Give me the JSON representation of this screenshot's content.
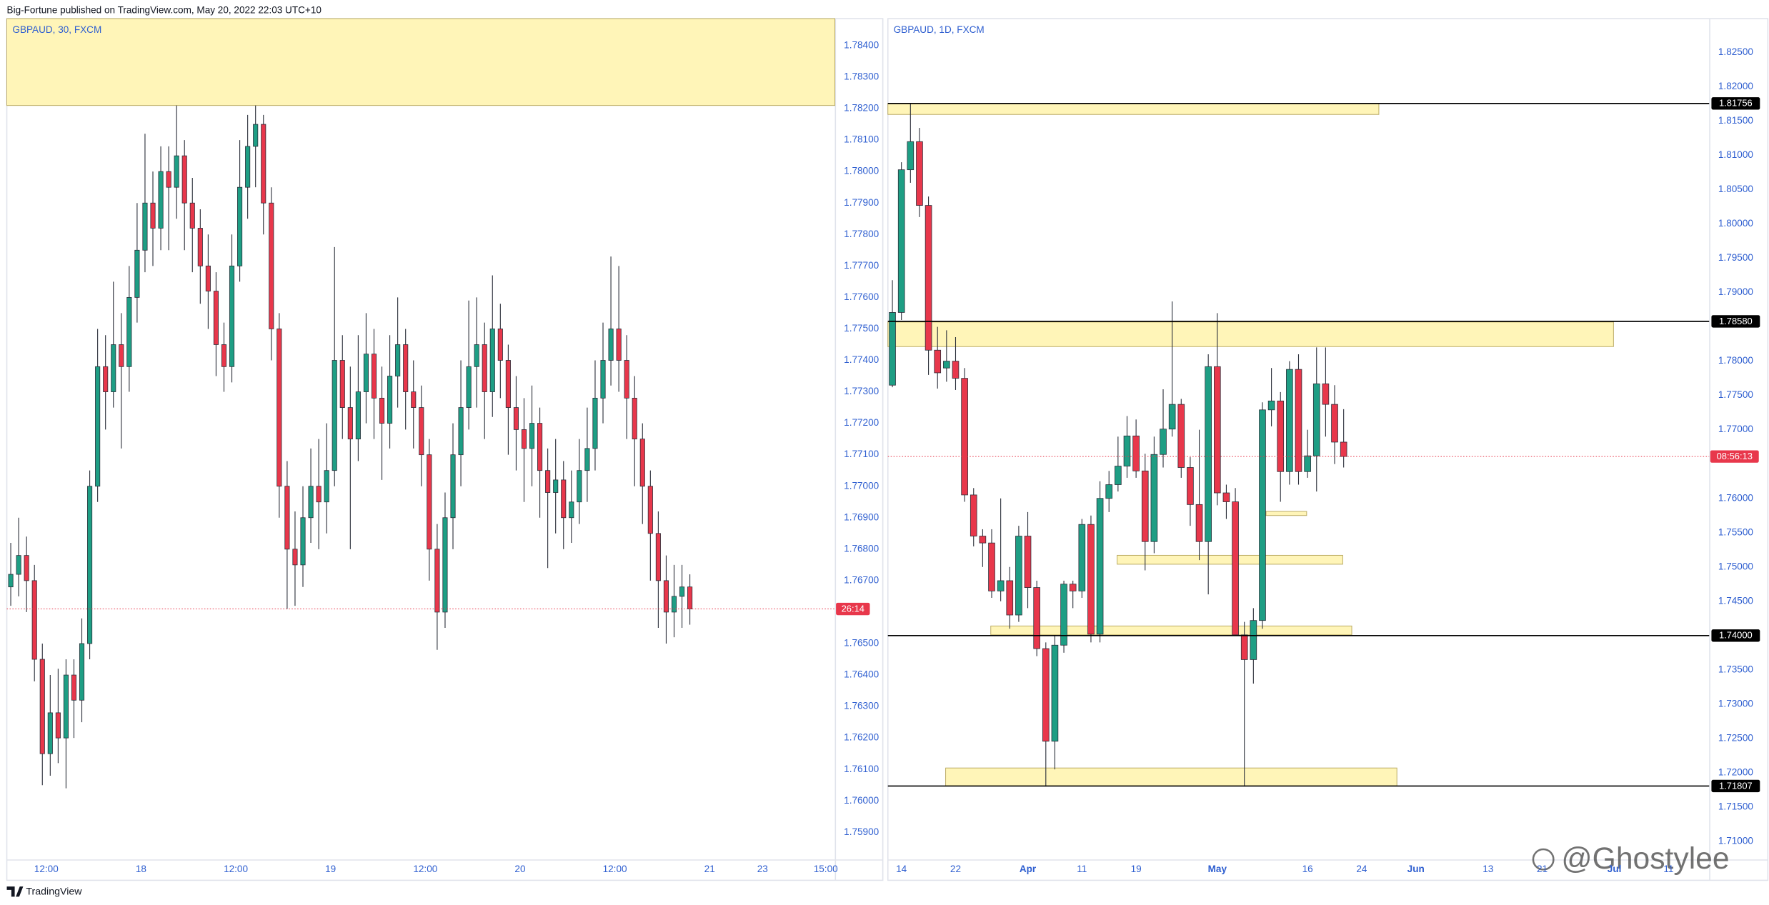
{
  "header": "Big-Fortune published on TradingView.com, May 20, 2022 22:03 UTC+10",
  "footer": "TradingView",
  "watermark": "@Ghostylee",
  "chart_data": [
    {
      "type": "candlestick",
      "title": "GBPAUD, 30, FXCM",
      "up_color": "#1e9e84",
      "down_color": "#e8374b",
      "zone_color": "#fff5b8",
      "grid": false,
      "x": [
        0.5,
        1.5,
        2.5,
        3.5,
        4.5,
        5.5,
        6.5,
        7.5,
        8.5,
        9.5,
        10.5,
        11.5,
        12.5,
        13.5,
        14.5,
        15.5,
        16.5,
        17.5,
        18.5,
        19.5,
        20.5,
        21.5,
        22.5,
        23.5,
        24.5,
        25.5,
        26.5,
        27.5,
        28.5,
        29.5,
        30.5,
        31.5,
        32.5,
        33.5,
        34.5,
        35.5,
        36.5,
        37.5,
        38.5,
        39.5,
        40.5,
        41.5,
        42.5,
        43.5,
        44.5,
        45.5,
        46.5,
        47.5,
        48.5,
        49.5,
        50.5,
        51.5,
        52.5,
        53.5,
        54.5,
        55.5,
        56.5,
        57.5,
        58.5,
        59.5,
        60.5,
        61.5,
        62.5,
        63.5,
        64.5,
        65.5,
        66.5,
        67.5,
        68.5,
        69.5,
        70.5,
        71.5,
        72.5,
        73.5,
        74.5,
        75.5,
        76.5,
        77.5,
        78.5,
        79.5,
        80.5,
        81.5,
        82.5,
        83.5,
        84.5,
        85.5,
        86.5
      ],
      "open": [
        1.7668,
        1.7672,
        1.7678,
        1.767,
        1.7645,
        1.7615,
        1.7628,
        1.762,
        1.764,
        1.7632,
        1.765,
        1.77,
        1.7738,
        1.773,
        1.7745,
        1.7738,
        1.776,
        1.7775,
        1.779,
        1.7782,
        1.78,
        1.7795,
        1.7805,
        1.779,
        1.7782,
        1.777,
        1.7762,
        1.7745,
        1.7738,
        1.777,
        1.7795,
        1.7808,
        1.7815,
        1.779,
        1.775,
        1.77,
        1.768,
        1.7675,
        1.769,
        1.77,
        1.7695,
        1.7705,
        1.774,
        1.7725,
        1.7715,
        1.773,
        1.7742,
        1.7728,
        1.772,
        1.7735,
        1.7745,
        1.773,
        1.7725,
        1.771,
        1.768,
        1.766,
        1.769,
        1.771,
        1.7725,
        1.7738,
        1.7745,
        1.773,
        1.775,
        1.774,
        1.7725,
        1.7718,
        1.7712,
        1.772,
        1.7705,
        1.7698,
        1.7702,
        1.769,
        1.7695,
        1.7705,
        1.7712,
        1.7728,
        1.774,
        1.775,
        1.774,
        1.7728,
        1.7715,
        1.77,
        1.7685,
        1.767,
        1.766,
        1.7665,
        1.7668
      ],
      "high": [
        1.7682,
        1.769,
        1.7684,
        1.7675,
        1.765,
        1.764,
        1.7642,
        1.7645,
        1.7645,
        1.7658,
        1.7705,
        1.775,
        1.7748,
        1.7765,
        1.7755,
        1.777,
        1.779,
        1.7812,
        1.78,
        1.7808,
        1.7808,
        1.7821,
        1.781,
        1.7798,
        1.7788,
        1.778,
        1.7768,
        1.7752,
        1.778,
        1.781,
        1.7818,
        1.7821,
        1.7818,
        1.7795,
        1.7755,
        1.7708,
        1.7692,
        1.77,
        1.7712,
        1.7715,
        1.772,
        1.7776,
        1.7748,
        1.7738,
        1.7748,
        1.7755,
        1.775,
        1.7738,
        1.7748,
        1.776,
        1.775,
        1.774,
        1.7732,
        1.7715,
        1.7688,
        1.7698,
        1.772,
        1.774,
        1.7759,
        1.776,
        1.7752,
        1.7767,
        1.7758,
        1.7745,
        1.7735,
        1.7728,
        1.7732,
        1.7725,
        1.7712,
        1.7715,
        1.7708,
        1.7705,
        1.7715,
        1.7725,
        1.774,
        1.7752,
        1.7773,
        1.777,
        1.7748,
        1.7735,
        1.772,
        1.7705,
        1.7692,
        1.7678,
        1.7675,
        1.7675,
        1.7672
      ],
      "low": [
        1.7662,
        1.7665,
        1.766,
        1.7638,
        1.7605,
        1.7608,
        1.7612,
        1.7604,
        1.762,
        1.7625,
        1.7645,
        1.7695,
        1.7718,
        1.7725,
        1.7712,
        1.773,
        1.7752,
        1.7768,
        1.777,
        1.7775,
        1.7775,
        1.7785,
        1.7775,
        1.7768,
        1.7758,
        1.775,
        1.7735,
        1.773,
        1.7733,
        1.7765,
        1.7785,
        1.7795,
        1.778,
        1.774,
        1.769,
        1.7661,
        1.7662,
        1.7668,
        1.7682,
        1.768,
        1.7685,
        1.77,
        1.7715,
        1.768,
        1.7708,
        1.772,
        1.7715,
        1.7702,
        1.7712,
        1.7725,
        1.7718,
        1.7712,
        1.77,
        1.767,
        1.7648,
        1.7655,
        1.768,
        1.77,
        1.7718,
        1.7725,
        1.7715,
        1.7722,
        1.7728,
        1.771,
        1.7705,
        1.7695,
        1.77,
        1.769,
        1.7674,
        1.7685,
        1.768,
        1.7682,
        1.7688,
        1.7695,
        1.7705,
        1.772,
        1.7732,
        1.773,
        1.7715,
        1.77,
        1.7688,
        1.767,
        1.7655,
        1.765,
        1.7652,
        1.7655,
        1.7656
      ],
      "close": [
        1.7672,
        1.7678,
        1.767,
        1.7645,
        1.7615,
        1.7628,
        1.762,
        1.764,
        1.7632,
        1.765,
        1.77,
        1.7738,
        1.773,
        1.7745,
        1.7738,
        1.776,
        1.7775,
        1.779,
        1.7782,
        1.78,
        1.7795,
        1.7805,
        1.779,
        1.7782,
        1.777,
        1.7762,
        1.7745,
        1.7738,
        1.777,
        1.7795,
        1.7808,
        1.7815,
        1.779,
        1.775,
        1.77,
        1.768,
        1.7675,
        1.769,
        1.77,
        1.7695,
        1.7705,
        1.774,
        1.7725,
        1.7715,
        1.773,
        1.7742,
        1.7728,
        1.772,
        1.7735,
        1.7745,
        1.773,
        1.7725,
        1.771,
        1.768,
        1.766,
        1.769,
        1.771,
        1.7725,
        1.7738,
        1.7745,
        1.773,
        1.775,
        1.774,
        1.7725,
        1.7718,
        1.7712,
        1.772,
        1.7705,
        1.7698,
        1.7702,
        1.769,
        1.7695,
        1.7705,
        1.7712,
        1.7728,
        1.774,
        1.775,
        1.774,
        1.7728,
        1.7715,
        1.77,
        1.7685,
        1.767,
        1.766,
        1.7665,
        1.7668,
        1.7661
      ],
      "xlim": [
        0,
        104.86
      ],
      "xticks": [
        {
          "value": 5,
          "label": "12:00"
        },
        {
          "value": 17,
          "label": "18"
        },
        {
          "value": 29,
          "label": "12:00"
        },
        {
          "value": 41,
          "label": "19"
        },
        {
          "value": 53,
          "label": "12:00"
        },
        {
          "value": 65,
          "label": "20"
        },
        {
          "value": 77,
          "label": "12:00"
        },
        {
          "value": 89,
          "label": "21"
        },
        {
          "value": 95.7,
          "label": "23"
        },
        {
          "value": 103.7,
          "label": "15:00"
        }
      ],
      "ylim": [
        1.75814,
        1.78486
      ],
      "yticks": [
        {
          "value": 1.784,
          "label": "1.78400"
        },
        {
          "value": 1.783,
          "label": "1.78300"
        },
        {
          "value": 1.782,
          "label": "1.78200"
        },
        {
          "value": 1.781,
          "label": "1.78100"
        },
        {
          "value": 1.78,
          "label": "1.78000"
        },
        {
          "value": 1.779,
          "label": "1.77900"
        },
        {
          "value": 1.778,
          "label": "1.77800"
        },
        {
          "value": 1.777,
          "label": "1.77700"
        },
        {
          "value": 1.776,
          "label": "1.77600"
        },
        {
          "value": 1.775,
          "label": "1.77500"
        },
        {
          "value": 1.774,
          "label": "1.77400"
        },
        {
          "value": 1.773,
          "label": "1.77300"
        },
        {
          "value": 1.772,
          "label": "1.77200"
        },
        {
          "value": 1.771,
          "label": "1.77100"
        },
        {
          "value": 1.77,
          "label": "1.77000"
        },
        {
          "value": 1.769,
          "label": "1.76900"
        },
        {
          "value": 1.768,
          "label": "1.76800"
        },
        {
          "value": 1.767,
          "label": "1.76700"
        },
        {
          "value": 1.765,
          "label": "1.76500"
        },
        {
          "value": 1.764,
          "label": "1.76400"
        },
        {
          "value": 1.763,
          "label": "1.76300"
        },
        {
          "value": 1.762,
          "label": "1.76200"
        },
        {
          "value": 1.761,
          "label": "1.76100"
        },
        {
          "value": 1.76,
          "label": "1.76000"
        },
        {
          "value": 1.759,
          "label": "1.75900"
        }
      ],
      "zones": [
        {
          "x": [
            0,
            104.86
          ],
          "y": [
            1.7821,
            1.78486
          ]
        }
      ],
      "last_price": 1.7661,
      "countdown": "26:14"
    },
    {
      "type": "candlestick",
      "title": "GBPAUD, 1D, FXCM",
      "up_color": "#1e9e84",
      "down_color": "#e8374b",
      "zone_color": "#fff5b8",
      "grid": false,
      "x": [
        0,
        1,
        2,
        3,
        4,
        5,
        6,
        7,
        8,
        9,
        10,
        11,
        12,
        13,
        14,
        15,
        16,
        17,
        18,
        19,
        20,
        21,
        22,
        23,
        24,
        25,
        26,
        27,
        28,
        29,
        30,
        31,
        32,
        33,
        34,
        35,
        36,
        37,
        38,
        39,
        40,
        41,
        42,
        43,
        44,
        45,
        46,
        47,
        48,
        49,
        50
      ],
      "open": [
        1.7765,
        1.7871,
        1.8079,
        1.812,
        1.8027,
        1.7816,
        1.779,
        1.78,
        1.7775,
        1.7605,
        1.7545,
        1.7535,
        1.7465,
        1.748,
        1.743,
        1.7545,
        1.747,
        1.7381,
        1.7246,
        1.7386,
        1.7475,
        1.7465,
        1.7562,
        1.7402,
        1.76,
        1.762,
        1.7647,
        1.7691,
        1.764,
        1.7537,
        1.7664,
        1.7701,
        1.7737,
        1.7645,
        1.7591,
        1.7537,
        1.7792,
        1.7608,
        1.7595,
        1.7401,
        1.7365,
        1.7422,
        1.7729,
        1.7742,
        1.7639,
        1.7788,
        1.7639,
        1.7662,
        1.7767,
        1.7737,
        1.7682
      ],
      "high": [
        1.7918,
        1.809,
        1.8175,
        1.814,
        1.804,
        1.785,
        1.7845,
        1.7835,
        1.779,
        1.7615,
        1.7555,
        1.7555,
        1.76,
        1.75,
        1.756,
        1.758,
        1.748,
        1.739,
        1.74,
        1.748,
        1.748,
        1.757,
        1.7575,
        1.7625,
        1.764,
        1.769,
        1.772,
        1.7715,
        1.7665,
        1.769,
        1.7759,
        1.7887,
        1.7745,
        1.766,
        1.77,
        1.781,
        1.787,
        1.762,
        1.7615,
        1.742,
        1.744,
        1.774,
        1.779,
        1.7755,
        1.78,
        1.781,
        1.77,
        1.782,
        1.782,
        1.7765,
        1.773
      ],
      "low": [
        1.7762,
        1.786,
        1.806,
        1.801,
        1.778,
        1.776,
        1.777,
        1.7758,
        1.7595,
        1.753,
        1.75,
        1.7455,
        1.745,
        1.741,
        1.742,
        1.744,
        1.737,
        1.718,
        1.7205,
        1.7375,
        1.744,
        1.7455,
        1.739,
        1.739,
        1.758,
        1.761,
        1.763,
        1.763,
        1.7495,
        1.752,
        1.7645,
        1.769,
        1.763,
        1.756,
        1.751,
        1.746,
        1.759,
        1.757,
        1.74,
        1.718,
        1.733,
        1.741,
        1.7705,
        1.7595,
        1.762,
        1.762,
        1.763,
        1.761,
        1.769,
        1.765,
        1.7645
      ],
      "close": [
        1.7871,
        1.8079,
        1.812,
        1.8027,
        1.7816,
        1.7783,
        1.78,
        1.7775,
        1.7605,
        1.7545,
        1.7535,
        1.7465,
        1.748,
        1.743,
        1.7545,
        1.747,
        1.7381,
        1.7246,
        1.7386,
        1.7475,
        1.7465,
        1.7562,
        1.7402,
        1.76,
        1.762,
        1.7647,
        1.7691,
        1.764,
        1.7537,
        1.7664,
        1.7701,
        1.7737,
        1.7645,
        1.7591,
        1.7537,
        1.7792,
        1.7608,
        1.7595,
        1.7401,
        1.7365,
        1.7422,
        1.7729,
        1.7742,
        1.7639,
        1.7788,
        1.7639,
        1.7662,
        1.7767,
        1.7737,
        1.7682,
        1.7661
      ],
      "xlim": [
        -0.5,
        90.5
      ],
      "xticks": [
        {
          "value": 1,
          "label": "14"
        },
        {
          "value": 7,
          "label": "22"
        },
        {
          "value": 15,
          "label": "Apr"
        },
        {
          "value": 21,
          "label": "11"
        },
        {
          "value": 27,
          "label": "19"
        },
        {
          "value": 36,
          "label": "May"
        },
        {
          "value": 46,
          "label": "16"
        },
        {
          "value": 52,
          "label": "24"
        },
        {
          "value": 58,
          "label": "Jun"
        },
        {
          "value": 66,
          "label": "13"
        },
        {
          "value": 72,
          "label": "21"
        },
        {
          "value": 80,
          "label": "Jul"
        },
        {
          "value": 86,
          "label": "11"
        }
      ],
      "ylim": [
        1.70737,
        1.82993
      ],
      "yticks": [
        {
          "value": 1.825,
          "label": "1.82500"
        },
        {
          "value": 1.82,
          "label": "1.82000"
        },
        {
          "value": 1.815,
          "label": "1.81500"
        },
        {
          "value": 1.81,
          "label": "1.81000"
        },
        {
          "value": 1.805,
          "label": "1.80500"
        },
        {
          "value": 1.8,
          "label": "1.80000"
        },
        {
          "value": 1.795,
          "label": "1.79500"
        },
        {
          "value": 1.79,
          "label": "1.79000"
        },
        {
          "value": 1.78,
          "label": "1.78000"
        },
        {
          "value": 1.775,
          "label": "1.77500"
        },
        {
          "value": 1.77,
          "label": "1.77000"
        },
        {
          "value": 1.76,
          "label": "1.76000"
        },
        {
          "value": 1.755,
          "label": "1.75500"
        },
        {
          "value": 1.75,
          "label": "1.75000"
        },
        {
          "value": 1.745,
          "label": "1.74500"
        },
        {
          "value": 1.735,
          "label": "1.73500"
        },
        {
          "value": 1.73,
          "label": "1.73000"
        },
        {
          "value": 1.725,
          "label": "1.72500"
        },
        {
          "value": 1.72,
          "label": "1.72000"
        },
        {
          "value": 1.715,
          "label": "1.71500"
        },
        {
          "value": 1.71,
          "label": "1.71000"
        }
      ],
      "zones": [
        {
          "x": [
            -0.5,
            53.9
          ],
          "y": [
            1.81596,
            1.81756
          ]
        },
        {
          "x": [
            -0.5,
            79.9
          ],
          "y": [
            1.78212,
            1.7857
          ]
        },
        {
          "x": [
            41.4,
            45.9
          ],
          "y": [
            1.7575,
            1.7581
          ]
        },
        {
          "x": [
            24.9,
            49.9
          ],
          "y": [
            1.7504,
            1.7517
          ]
        },
        {
          "x": [
            10.9,
            50.9
          ],
          "y": [
            1.7401,
            1.7414
          ]
        },
        {
          "x": [
            5.9,
            55.9
          ],
          "y": [
            1.7181,
            1.7207
          ]
        }
      ],
      "levels": [
        1.81756,
        {
          "value": 1.7858,
          "label": "1.78580"
        },
        {
          "value": 1.74,
          "label": "1.74000"
        },
        1.71807
      ],
      "last_price": 1.7661,
      "countdown": "08:56:13"
    }
  ]
}
